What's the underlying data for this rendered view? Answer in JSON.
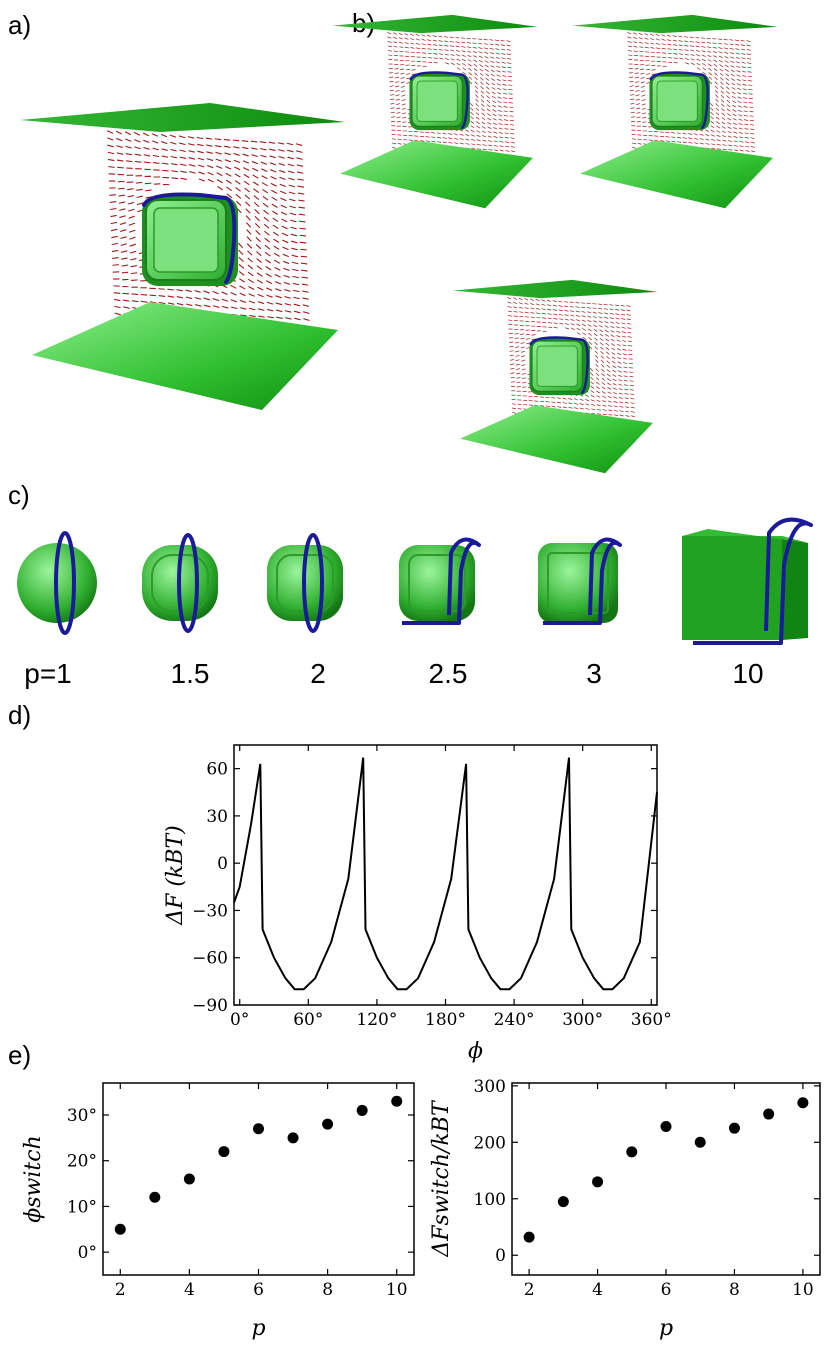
{
  "panels": {
    "a": "a)",
    "b": "b)",
    "c": "c)",
    "d": "d)",
    "e": "e)"
  },
  "colors": {
    "plate": "#1fae1f",
    "cube": "#3cb43c",
    "ring": "#1a1a9a",
    "director": "#a01818",
    "line": "#000000"
  },
  "shapes_row": {
    "labels": [
      "p=1",
      "1.5",
      "2",
      "2.5",
      "3",
      "10"
    ]
  },
  "chart_data": [
    {
      "type": "line",
      "panel": "d)",
      "xlabel": "ϕ",
      "ylabel": "ΔF (kBT)",
      "xlim": [
        -5,
        365
      ],
      "ylim": [
        -90,
        75
      ],
      "xticks": [
        0,
        60,
        120,
        180,
        240,
        300,
        360
      ],
      "xtick_labels": [
        "0°",
        "60°",
        "120°",
        "180°",
        "240°",
        "300°",
        "360°"
      ],
      "yticks": [
        -90,
        -60,
        -30,
        0,
        30,
        60
      ],
      "ytick_labels": [
        "−90",
        "−60",
        "−30",
        "0",
        "30",
        "60"
      ],
      "series": [
        {
          "x": [
            -5,
            0,
            10,
            18,
            20,
            30,
            40,
            48,
            56,
            66,
            80,
            95,
            108,
            110,
            120,
            130,
            138,
            146,
            156,
            170,
            185,
            198,
            200,
            210,
            220,
            228,
            236,
            246,
            260,
            275,
            288,
            290,
            300,
            310,
            318,
            326,
            336,
            350,
            365
          ],
          "y": [
            -25,
            -15,
            25,
            63,
            -42,
            -60,
            -73,
            -80,
            -80,
            -73,
            -50,
            -10,
            67,
            -42,
            -60,
            -73,
            -80,
            -80,
            -73,
            -50,
            -10,
            63,
            -42,
            -60,
            -73,
            -80,
            -80,
            -73,
            -50,
            -10,
            67,
            -42,
            -60,
            -73,
            -80,
            -80,
            -73,
            -50,
            45
          ]
        }
      ]
    },
    {
      "type": "scatter",
      "panel": "e) left",
      "xlabel": "p",
      "ylabel": "ϕswitch",
      "xlim": [
        1.5,
        10.5
      ],
      "ylim": [
        -5,
        37
      ],
      "xticks": [
        2,
        4,
        6,
        8,
        10
      ],
      "xtick_labels": [
        "2",
        "4",
        "6",
        "8",
        "10"
      ],
      "yticks": [
        0,
        10,
        20,
        30
      ],
      "ytick_labels": [
        "0°",
        "10°",
        "20°",
        "30°"
      ],
      "x": [
        2,
        3,
        4,
        5,
        6,
        7,
        8,
        9,
        10
      ],
      "y": [
        5,
        12,
        16,
        22,
        27,
        25,
        28,
        31,
        33
      ]
    },
    {
      "type": "scatter",
      "panel": "e) right",
      "xlabel": "p",
      "ylabel": "ΔFswitch/kBT",
      "xlim": [
        1.5,
        10.5
      ],
      "ylim": [
        -35,
        305
      ],
      "xticks": [
        2,
        4,
        6,
        8,
        10
      ],
      "xtick_labels": [
        "2",
        "4",
        "6",
        "8",
        "10"
      ],
      "yticks": [
        0,
        100,
        200,
        300
      ],
      "ytick_labels": [
        "0",
        "100",
        "200",
        "300"
      ],
      "x": [
        2,
        3,
        4,
        5,
        6,
        7,
        8,
        9,
        10
      ],
      "y": [
        32,
        95,
        130,
        183,
        228,
        200,
        225,
        250,
        270
      ]
    }
  ]
}
